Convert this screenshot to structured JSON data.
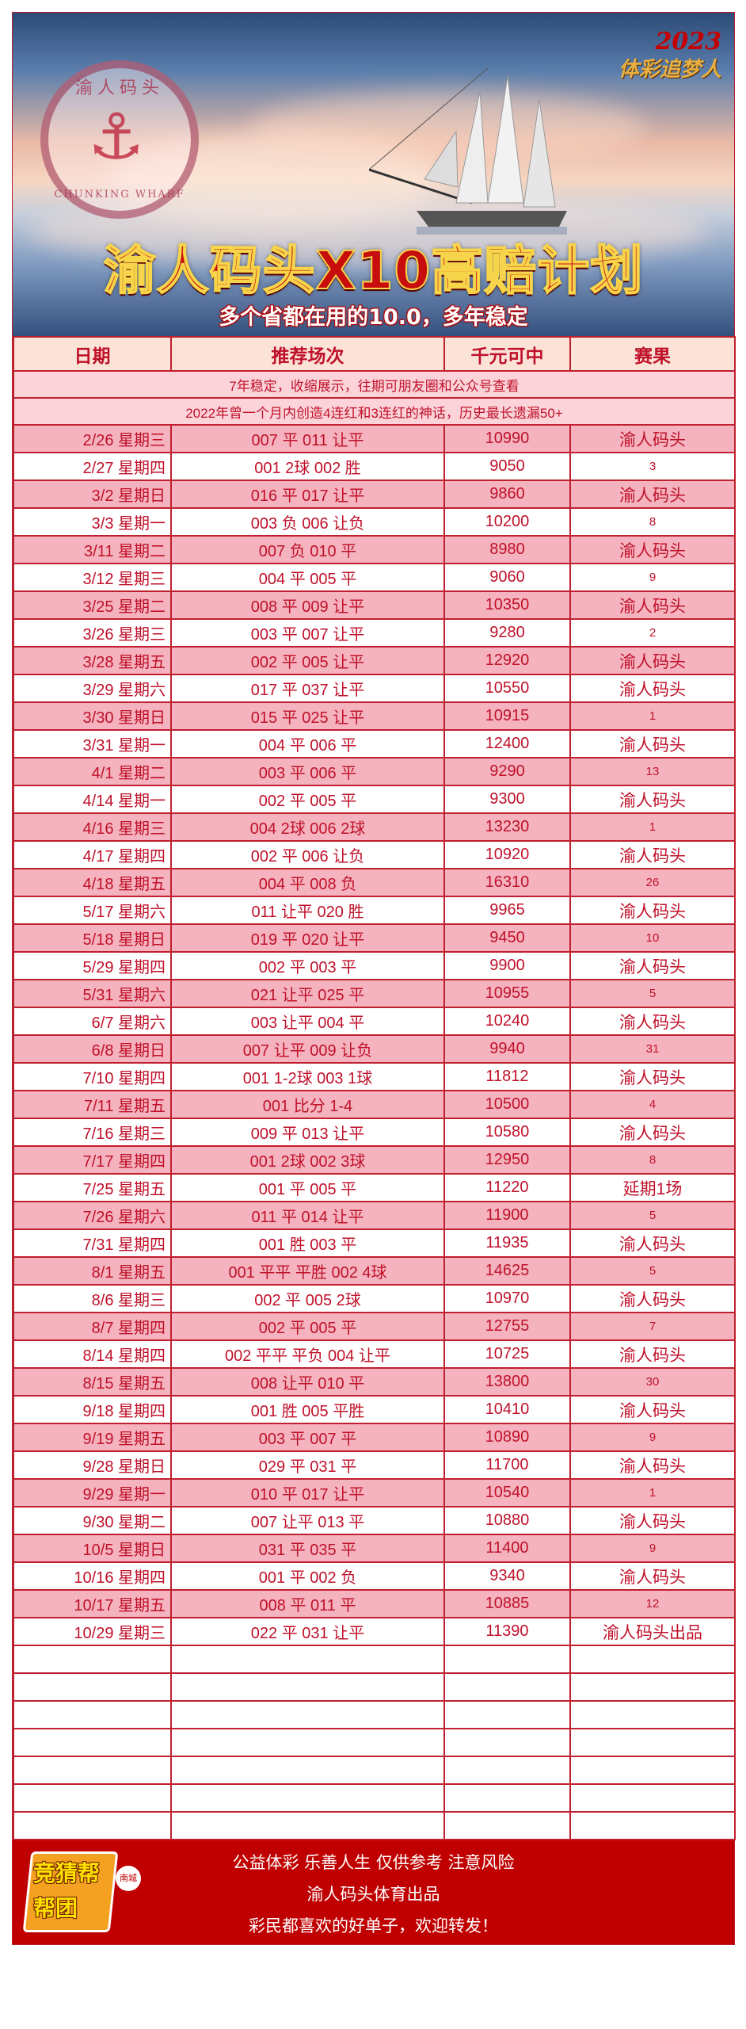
{
  "banner": {
    "logo_cn": "渝人码头",
    "logo_en": "CHUNKING WHARF",
    "corner_year": "2023",
    "corner_slogan": "体彩追梦人",
    "title": "渝人码头X10高赔计划",
    "subtitle": "多个省都在用的10.0，多年稳定"
  },
  "table": {
    "headers": [
      "日期",
      "推荐场次",
      "千元可中",
      "赛果"
    ],
    "notes": [
      "7年稳定，收缩展示，往期可朋友圈和公众号查看",
      "2022年曾一个月内创造4连红和3连红的神话，历史最长遗漏50+"
    ],
    "rows": [
      {
        "date": "2/26 星期三",
        "pick": "007 平 011 让平",
        "payout": "10990",
        "result": "渝人码头"
      },
      {
        "date": "2/27 星期四",
        "pick": "001 2球 002 胜",
        "payout": "9050",
        "result": "3"
      },
      {
        "date": "3/2 星期日",
        "pick": "016 平 017 让平",
        "payout": "9860",
        "result": "渝人码头"
      },
      {
        "date": "3/3 星期一",
        "pick": "003 负 006 让负",
        "payout": "10200",
        "result": "8"
      },
      {
        "date": "3/11 星期二",
        "pick": "007 负 010 平",
        "payout": "8980",
        "result": "渝人码头"
      },
      {
        "date": "3/12 星期三",
        "pick": "004 平 005 平",
        "payout": "9060",
        "result": "9"
      },
      {
        "date": "3/25 星期二",
        "pick": "008 平 009 让平",
        "payout": "10350",
        "result": "渝人码头"
      },
      {
        "date": "3/26 星期三",
        "pick": "003 平 007 让平",
        "payout": "9280",
        "result": "2"
      },
      {
        "date": "3/28 星期五",
        "pick": "002 平 005 让平",
        "payout": "12920",
        "result": "渝人码头"
      },
      {
        "date": "3/29 星期六",
        "pick": "017 平 037 让平",
        "payout": "10550",
        "result": "渝人码头"
      },
      {
        "date": "3/30 星期日",
        "pick": "015 平 025 让平",
        "payout": "10915",
        "result": "1"
      },
      {
        "date": "3/31 星期一",
        "pick": "004 平 006 平",
        "payout": "12400",
        "result": "渝人码头"
      },
      {
        "date": "4/1 星期二",
        "pick": "003 平 006 平",
        "payout": "9290",
        "result": "13"
      },
      {
        "date": "4/14 星期一",
        "pick": "002 平 005 平",
        "payout": "9300",
        "result": "渝人码头"
      },
      {
        "date": "4/16 星期三",
        "pick": "004 2球 006 2球",
        "payout": "13230",
        "result": "1"
      },
      {
        "date": "4/17 星期四",
        "pick": "002 平 006 让负",
        "payout": "10920",
        "result": "渝人码头"
      },
      {
        "date": "4/18 星期五",
        "pick": "004 平 008 负",
        "payout": "16310",
        "result": "26"
      },
      {
        "date": "5/17 星期六",
        "pick": "011 让平 020 胜",
        "payout": "9965",
        "result": "渝人码头"
      },
      {
        "date": "5/18 星期日",
        "pick": "019 平 020 让平",
        "payout": "9450",
        "result": "10"
      },
      {
        "date": "5/29 星期四",
        "pick": "002 平 003 平",
        "payout": "9900",
        "result": "渝人码头"
      },
      {
        "date": "5/31 星期六",
        "pick": "021 让平 025 平",
        "payout": "10955",
        "result": "5"
      },
      {
        "date": "6/7 星期六",
        "pick": "003 让平 004 平",
        "payout": "10240",
        "result": "渝人码头"
      },
      {
        "date": "6/8 星期日",
        "pick": "007 让平 009 让负",
        "payout": "9940",
        "result": "31"
      },
      {
        "date": "7/10 星期四",
        "pick": "001 1-2球 003 1球",
        "payout": "11812",
        "result": "渝人码头"
      },
      {
        "date": "7/11 星期五",
        "pick": "001 比分 1-4",
        "payout": "10500",
        "result": "4"
      },
      {
        "date": "7/16 星期三",
        "pick": "009 平 013 让平",
        "payout": "10580",
        "result": "渝人码头"
      },
      {
        "date": "7/17 星期四",
        "pick": "001 2球 002 3球",
        "payout": "12950",
        "result": "8"
      },
      {
        "date": "7/25 星期五",
        "pick": "001 平 005 平",
        "payout": "11220",
        "result": "延期1场"
      },
      {
        "date": "7/26 星期六",
        "pick": "011 平 014 让平",
        "payout": "11900",
        "result": "5"
      },
      {
        "date": "7/31 星期四",
        "pick": "001 胜 003 平",
        "payout": "11935",
        "result": "渝人码头"
      },
      {
        "date": "8/1 星期五",
        "pick": "001 平平 平胜 002 4球",
        "payout": "14625",
        "result": "5"
      },
      {
        "date": "8/6 星期三",
        "pick": "002 平 005 2球",
        "payout": "10970",
        "result": "渝人码头"
      },
      {
        "date": "8/7 星期四",
        "pick": "002 平 005 平",
        "payout": "12755",
        "result": "7"
      },
      {
        "date": "8/14 星期四",
        "pick": "002 平平 平负 004 让平",
        "payout": "10725",
        "result": "渝人码头"
      },
      {
        "date": "8/15 星期五",
        "pick": "008 让平 010 平",
        "payout": "13800",
        "result": "30"
      },
      {
        "date": "9/18 星期四",
        "pick": "001 胜 005 平胜",
        "payout": "10410",
        "result": "渝人码头"
      },
      {
        "date": "9/19 星期五",
        "pick": "003 平 007 平",
        "payout": "10890",
        "result": "9"
      },
      {
        "date": "9/28 星期日",
        "pick": "029 平 031 平",
        "payout": "11700",
        "result": "渝人码头"
      },
      {
        "date": "9/29 星期一",
        "pick": "010 平 017 让平",
        "payout": "10540",
        "result": "1"
      },
      {
        "date": "9/30 星期二",
        "pick": "007 让平 013 平",
        "payout": "10880",
        "result": "渝人码头"
      },
      {
        "date": "10/5 星期日",
        "pick": "031 平 035 平",
        "payout": "11400",
        "result": "9"
      },
      {
        "date": "10/16 星期四",
        "pick": "001 平 002 负",
        "payout": "9340",
        "result": "渝人码头"
      },
      {
        "date": "10/17 星期五",
        "pick": "008 平 011 平",
        "payout": "10885",
        "result": "12"
      },
      {
        "date": "10/29 星期三",
        "pick": "022 平 031 让平",
        "payout": "11390",
        "result": "渝人码头出品"
      }
    ]
  },
  "footer": {
    "badge_text": "竞猜帮帮团",
    "badge_small": "南城",
    "lines": [
      "公益体彩 乐善人生   仅供参考 注意风险",
      "渝人码头体育出品",
      "彩民都喜欢的好单子，欢迎转发！"
    ]
  },
  "colors": {
    "accent_red": "#c0112a",
    "row_pink": "#f4b3be",
    "header_bg": "#fbe3d8",
    "footer_bg": "#c00000"
  }
}
